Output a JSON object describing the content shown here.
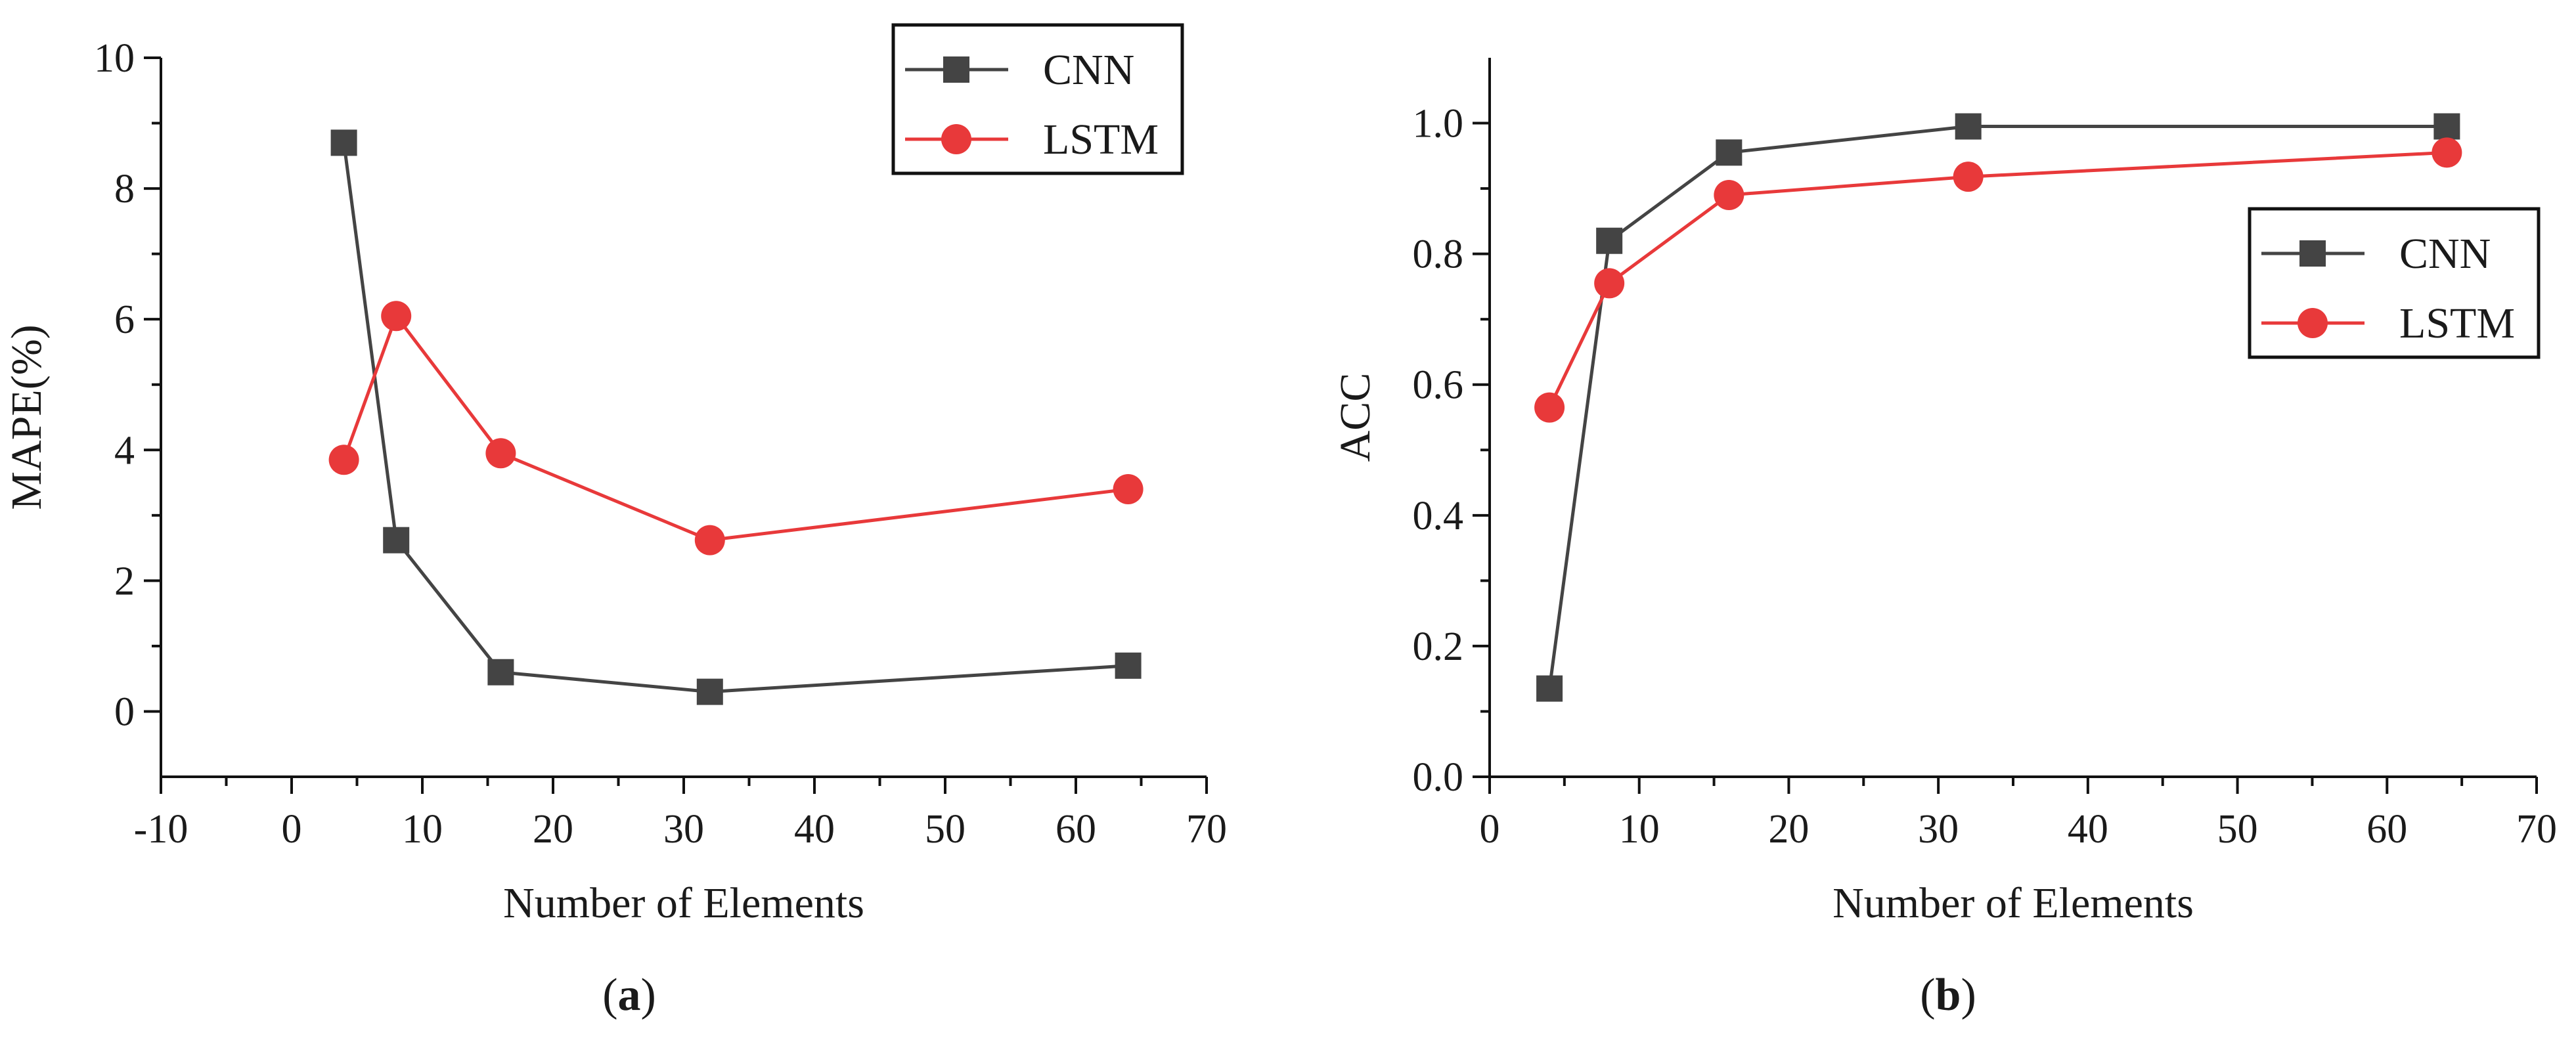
{
  "chart_data": [
    {
      "type": "line",
      "panel_label": "a",
      "title": "",
      "xlabel": "Number of Elements",
      "ylabel": "MAPE(%)",
      "xlim": [
        -10,
        70
      ],
      "ylim": [
        -1,
        10
      ],
      "xticks": [
        -10,
        0,
        10,
        20,
        30,
        40,
        50,
        60,
        70
      ],
      "xtick_labels": [
        "-10",
        "0",
        "10",
        "20",
        "30",
        "40",
        "50",
        "60",
        "70"
      ],
      "yticks": [
        0,
        2,
        4,
        6,
        8,
        10
      ],
      "ytick_labels": [
        "0",
        "2",
        "4",
        "6",
        "8",
        "10"
      ],
      "legend_position": "top-right",
      "series": [
        {
          "name": "CNN",
          "marker": "square",
          "color": "#444444",
          "x": [
            4,
            8,
            16,
            32,
            64
          ],
          "values": [
            8.7,
            2.62,
            0.6,
            0.3,
            0.7
          ]
        },
        {
          "name": "LSTM",
          "marker": "circle",
          "color": "#e8393a",
          "x": [
            4,
            8,
            16,
            32,
            64
          ],
          "values": [
            3.85,
            6.05,
            3.95,
            2.62,
            3.4
          ]
        }
      ]
    },
    {
      "type": "line",
      "panel_label": "b",
      "title": "",
      "xlabel": "Number of Elements",
      "ylabel": "ACC",
      "xlim": [
        0,
        70
      ],
      "ylim": [
        0,
        1.1
      ],
      "xticks": [
        0,
        10,
        20,
        30,
        40,
        50,
        60,
        70
      ],
      "xtick_labels": [
        "0",
        "10",
        "20",
        "30",
        "40",
        "50",
        "60",
        "70"
      ],
      "yticks": [
        0,
        0.2,
        0.4,
        0.6,
        0.8,
        1.0
      ],
      "ytick_labels": [
        "0.0",
        "0.2",
        "0.4",
        "0.6",
        "0.8",
        "1.0"
      ],
      "legend_position": "right",
      "series": [
        {
          "name": "CNN",
          "marker": "square",
          "color": "#444444",
          "x": [
            4,
            8,
            16,
            32,
            64
          ],
          "values": [
            0.135,
            0.82,
            0.955,
            0.995,
            0.995
          ]
        },
        {
          "name": "LSTM",
          "marker": "circle",
          "color": "#e8393a",
          "x": [
            4,
            8,
            16,
            32,
            64
          ],
          "values": [
            0.565,
            0.755,
            0.89,
            0.918,
            0.955
          ]
        }
      ]
    }
  ]
}
